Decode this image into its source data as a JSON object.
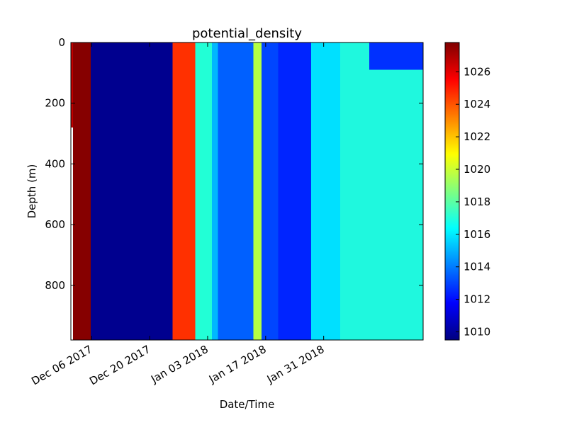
{
  "chart_data": {
    "type": "heatmap",
    "title": "potential_density",
    "xlabel": "Date/Time",
    "ylabel": "Depth (m)",
    "x_range": [
      "2017-12-01",
      "2018-02-24"
    ],
    "ylim": [
      980,
      0
    ],
    "y_inverted": true,
    "y_ticks": [
      0,
      200,
      400,
      600,
      800
    ],
    "x_ticks": [
      {
        "date": "2017-12-06",
        "label": "Dec 06 2017"
      },
      {
        "date": "2017-12-20",
        "label": "Dec 20 2017"
      },
      {
        "date": "2018-01-03",
        "label": "Jan 03 2018"
      },
      {
        "date": "2018-01-17",
        "label": "Jan 17 2018"
      },
      {
        "date": "2018-01-31",
        "label": "Jan 31 2018"
      }
    ],
    "colorbar": {
      "colormap": "jet",
      "range": [
        1009.5,
        1027.8
      ],
      "ticks": [
        1010,
        1012,
        1014,
        1016,
        1018,
        1020,
        1022,
        1024,
        1026
      ]
    },
    "regions": [
      {
        "start": "2017-12-01",
        "end": "2017-12-01T12:00",
        "top": 0,
        "bottom": 280,
        "value": 1026.6,
        "color": "#c00000"
      },
      {
        "start": "2017-12-01T12:00",
        "end": "2017-12-05T18:00",
        "top": 0,
        "bottom": 980,
        "value": 1027.5,
        "color": "#860000"
      },
      {
        "start": "2017-12-05T18:00",
        "end": "2017-12-25T12:00",
        "top": 0,
        "bottom": 980,
        "value": 1010,
        "color": "#00008f"
      },
      {
        "start": "2017-12-25T12:00",
        "end": "2017-12-31",
        "top": 0,
        "bottom": 980,
        "value": 1025.2,
        "color": "#ff3000"
      },
      {
        "start": "2017-12-31",
        "end": "2018-01-04",
        "top": 0,
        "bottom": 980,
        "value": 1016,
        "color": "#22ffd6"
      },
      {
        "start": "2018-01-04",
        "end": "2018-01-05T12:00",
        "top": 0,
        "bottom": 980,
        "value": 1014.5,
        "color": "#00b8ff"
      },
      {
        "start": "2018-01-05T12:00",
        "end": "2018-01-14",
        "top": 0,
        "bottom": 980,
        "value": 1013,
        "color": "#0060ff"
      },
      {
        "start": "2018-01-14",
        "end": "2018-01-16",
        "top": 0,
        "bottom": 980,
        "value": 1019.5,
        "color": "#b4ff43"
      },
      {
        "start": "2018-01-16",
        "end": "2018-01-20",
        "top": 0,
        "bottom": 980,
        "value": 1012.5,
        "color": "#0046ff"
      },
      {
        "start": "2018-01-20",
        "end": "2018-01-28",
        "top": 0,
        "bottom": 980,
        "value": 1011.5,
        "color": "#0024ff"
      },
      {
        "start": "2018-01-28",
        "end": "2018-02-04",
        "top": 0,
        "bottom": 980,
        "value": 1015.5,
        "color": "#00e0ff"
      },
      {
        "start": "2018-02-04",
        "end": "2018-02-24",
        "top": 90,
        "bottom": 980,
        "value": 1016,
        "color": "#1ff8de"
      },
      {
        "start": "2018-02-04",
        "end": "2018-02-11",
        "top": 0,
        "bottom": 90,
        "value": 1016,
        "color": "#1ff8de"
      },
      {
        "start": "2018-02-11",
        "end": "2018-02-24",
        "top": 0,
        "bottom": 90,
        "value": 1012.5,
        "color": "#0030ff"
      }
    ]
  }
}
